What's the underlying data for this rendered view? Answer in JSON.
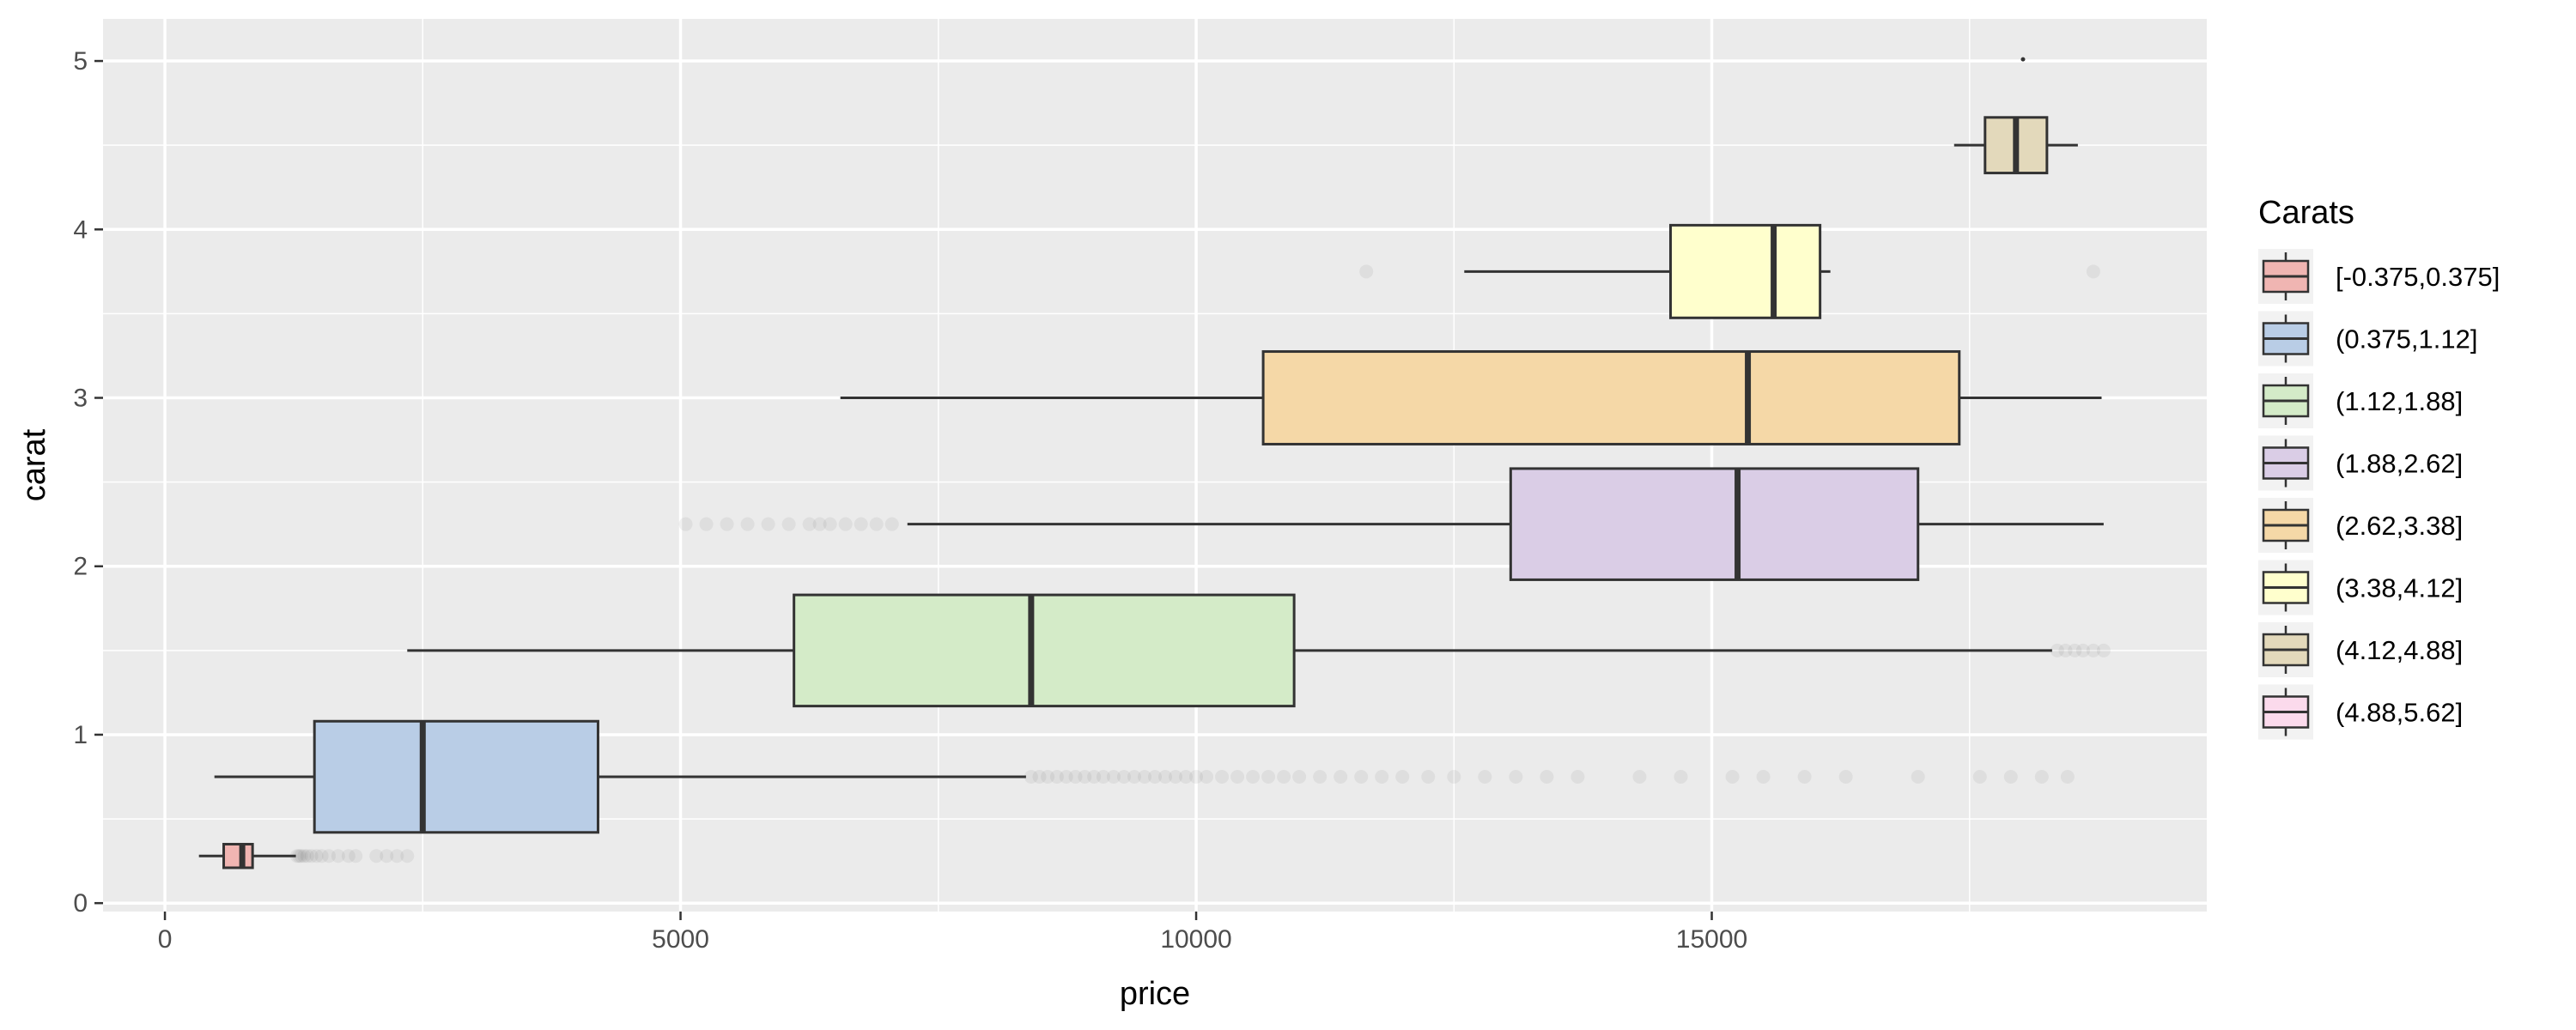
{
  "chart_data": {
    "type": "boxplot",
    "orientation": "horizontal",
    "title": "",
    "xlabel": "price",
    "ylabel": "carat",
    "xlim": [
      -600,
      19800
    ],
    "ylim": [
      -0.05,
      5.25
    ],
    "x_ticks": [
      0,
      5000,
      10000,
      15000
    ],
    "x_tick_labels": [
      "0",
      "5000",
      "10000",
      "15000"
    ],
    "y_ticks": [
      0,
      1,
      2,
      3,
      4,
      5
    ],
    "y_tick_labels": [
      "0",
      "1",
      "2",
      "3",
      "4",
      "5"
    ],
    "grid": true,
    "legend": {
      "title": "Carats",
      "placement": "right",
      "entries": [
        "[-0.375,0.375]",
        "(0.375,1.12]",
        "(1.12,1.88]",
        "(1.88,2.62]",
        "(2.62,3.38]",
        "(3.38,4.12]",
        "(4.12,4.88]",
        "(4.88,5.62]"
      ]
    },
    "colors": {
      "panel": "#ebebeb",
      "grid": "#ffffff",
      "box_outline": "#333333",
      "legend_key_bg": "#f2f2f2",
      "outlier": "#333333",
      "series": [
        "#f0b5b2",
        "#b9cde6",
        "#d4ebc8",
        "#dacde6",
        "#f5d8a7",
        "#ffffcd",
        "#e3d9bb",
        "#fbdaec"
      ]
    },
    "series": [
      {
        "name": "[-0.375,0.375]",
        "y": 0.28,
        "height": 0.14,
        "whisker_low": 330,
        "q1": 570,
        "median": 750,
        "q3": 850,
        "whisker_high": 1270,
        "outliers": [
          1280,
          1300,
          1320,
          1350,
          1380,
          1420,
          1470,
          1520,
          1590,
          1680,
          1780,
          1850,
          2050,
          2150,
          2250,
          2350
        ]
      },
      {
        "name": "(0.375,1.12]",
        "y": 0.75,
        "height": 0.66,
        "whisker_low": 480,
        "q1": 1450,
        "median": 2500,
        "q3": 4200,
        "whisker_high": 8350,
        "outliers": [
          8400,
          8480,
          8560,
          8650,
          8740,
          8830,
          8920,
          9010,
          9100,
          9200,
          9300,
          9400,
          9500,
          9600,
          9700,
          9800,
          9900,
          10000,
          10100,
          10250,
          10400,
          10550,
          10700,
          10850,
          11000,
          11200,
          11400,
          11600,
          11800,
          12000,
          12250,
          12500,
          12800,
          13100,
          13400,
          13700,
          14300,
          14700,
          15200,
          15500,
          15900,
          16300,
          17000,
          17600,
          17900,
          18200,
          18450
        ]
      },
      {
        "name": "(1.12,1.88]",
        "y": 1.5,
        "height": 0.66,
        "whisker_low": 2350,
        "q1": 6100,
        "median": 8400,
        "q3": 10950,
        "whisker_high": 18300,
        "outliers": [
          18350,
          18430,
          18520,
          18600,
          18700,
          18800
        ]
      },
      {
        "name": "(1.88,2.62]",
        "y": 2.25,
        "height": 0.66,
        "whisker_low": 7200,
        "q1": 13050,
        "median": 15250,
        "q3": 17000,
        "whisker_high": 18800,
        "outliers": [
          5050,
          5250,
          5450,
          5650,
          5850,
          6050,
          6250,
          6350,
          6450,
          6600,
          6750,
          6900,
          7050
        ]
      },
      {
        "name": "(2.62,3.38]",
        "y": 3.0,
        "height": 0.55,
        "whisker_low": 6550,
        "q1": 10650,
        "median": 15350,
        "q3": 17400,
        "whisker_high": 18780,
        "outliers": []
      },
      {
        "name": "(3.38,4.12]",
        "y": 3.75,
        "height": 0.55,
        "whisker_low": 12600,
        "q1": 14600,
        "median": 15600,
        "q3": 16050,
        "whisker_high": 16150,
        "outliers": [
          11650,
          18700
        ]
      },
      {
        "name": "(4.12,4.88]",
        "y": 4.5,
        "height": 0.33,
        "whisker_low": 17350,
        "q1": 17650,
        "median": 17950,
        "q3": 18250,
        "whisker_high": 18550,
        "outliers": []
      },
      {
        "name": "(4.88,5.62]",
        "y": 5.01,
        "height": 0.0,
        "whisker_low": 18018,
        "q1": 18018,
        "median": 18018,
        "q3": 18018,
        "whisker_high": 18018,
        "outliers": []
      }
    ]
  }
}
